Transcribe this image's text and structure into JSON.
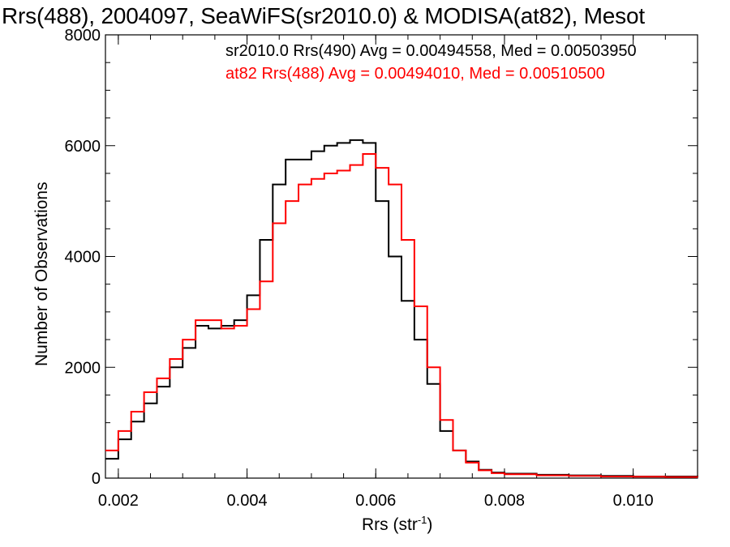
{
  "chart_data": {
    "type": "line",
    "title": "Rrs(488), 2004097, SeaWiFS(sr2010.0) & MODISA(at82), Mesot",
    "xlabel_main": "Rrs (str",
    "xlabel_sup": "-1",
    "xlabel_end": ")",
    "ylabel": "Number of Observations",
    "xlim": [
      0.0018,
      0.011
    ],
    "ylim": [
      0,
      8000
    ],
    "x_ticks": [
      0.002,
      0.004,
      0.006,
      0.008,
      0.01
    ],
    "x_tick_labels": [
      "0.002",
      "0.004",
      "0.006",
      "0.008",
      "0.010"
    ],
    "y_ticks": [
      0,
      2000,
      4000,
      6000,
      8000
    ],
    "y_tick_labels": [
      "0",
      "2000",
      "4000",
      "6000",
      "8000"
    ],
    "annotations": [
      "sr2010.0 Rrs(490) Avg = 0.00494558, Med = 0.00503950",
      "at82 Rrs(488) Avg = 0.00494010, Med = 0.00510500"
    ],
    "series": [
      {
        "color": "#000000",
        "x": [
          0.0018,
          0.002,
          0.0022,
          0.0024,
          0.0026,
          0.0028,
          0.003,
          0.0032,
          0.0034,
          0.0036,
          0.0038,
          0.004,
          0.0042,
          0.0044,
          0.0046,
          0.0048,
          0.005,
          0.0052,
          0.0054,
          0.0056,
          0.0058,
          0.006,
          0.0062,
          0.0064,
          0.0066,
          0.0068,
          0.007,
          0.0072,
          0.0074,
          0.0076,
          0.0078,
          0.008,
          0.0085,
          0.009,
          0.0095,
          0.01,
          0.0105,
          0.011
        ],
        "y": [
          350,
          700,
          1020,
          1350,
          1650,
          2000,
          2350,
          2750,
          2700,
          2750,
          2850,
          3300,
          4300,
          5300,
          5750,
          5750,
          5900,
          6000,
          6050,
          6100,
          6050,
          5000,
          4000,
          3200,
          2500,
          1700,
          850,
          500,
          300,
          150,
          100,
          80,
          60,
          50,
          40,
          30,
          30,
          25
        ]
      },
      {
        "color": "#ff0000",
        "x": [
          0.0018,
          0.002,
          0.0022,
          0.0024,
          0.0026,
          0.0028,
          0.003,
          0.0032,
          0.0034,
          0.0036,
          0.0038,
          0.004,
          0.0042,
          0.0044,
          0.0046,
          0.0048,
          0.005,
          0.0052,
          0.0054,
          0.0056,
          0.0058,
          0.006,
          0.0062,
          0.0064,
          0.0066,
          0.0068,
          0.007,
          0.0072,
          0.0074,
          0.0076,
          0.0078,
          0.008,
          0.0085,
          0.009,
          0.0095,
          0.01,
          0.0105,
          0.011
        ],
        "y": [
          500,
          850,
          1200,
          1550,
          1800,
          2150,
          2500,
          2850,
          2850,
          2700,
          2750,
          3050,
          3550,
          4600,
          5000,
          5300,
          5400,
          5500,
          5550,
          5650,
          5850,
          5600,
          5300,
          4300,
          3100,
          2000,
          1050,
          500,
          280,
          140,
          90,
          70,
          50,
          40,
          30,
          25,
          20,
          18
        ]
      }
    ]
  }
}
